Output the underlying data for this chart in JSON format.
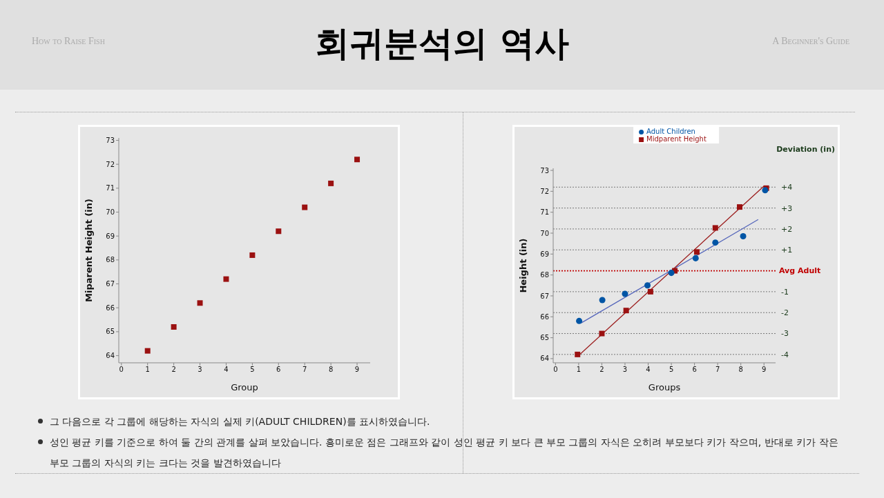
{
  "chart_data": [
    {
      "type": "scatter",
      "title": "회귀분석의 역사",
      "annotations": [
        "How to Raise Fish",
        "A Beginner's Guide"
      ],
      "xlabel": "Group",
      "ylabel": "Miparent Height (in)",
      "marker": "square",
      "grid": false,
      "legend": false,
      "xlim": [
        -0.1,
        9.5
      ],
      "xticks": [
        0,
        1,
        2,
        3,
        4,
        5,
        6,
        7,
        8,
        9
      ],
      "ylim": [
        63.7,
        73.1
      ],
      "yticks": [
        64,
        65,
        66,
        67,
        68,
        69,
        70,
        71,
        72,
        73
      ],
      "x": [
        1,
        2,
        3,
        4,
        5,
        6,
        7,
        8,
        9
      ],
      "series": [
        {
          "color": "#9b1111",
          "values": [
            64.2,
            65.2,
            66.2,
            67.2,
            68.2,
            69.2,
            70.2,
            71.2,
            72.2
          ]
        }
      ]
    },
    {
      "type": "scatter",
      "xlabel": "Groups",
      "ylabel": "Height (in)",
      "y2label": "Deviation (in)",
      "legend": "top",
      "grid": false,
      "annotations": [
        "그 다음으로 각 그룹에 해당하는 자식의 실제 키(ADULT CHILDREN)를 표시하였습니다.",
        "성인 평균 키를 기준으로 하여 둘 간의 관계를 살펴 보았습니다. 흥미로운 점은 그래프와 같이 성인 평균 키 보다 큰 부모 그룹의 자식은 오히려 부모보다 키가 작으며, 반대로 키가 작은 부모 그룹의 자식의 키는 크다는 것을 발견하였습니다"
      ],
      "xlim": [
        -0.1,
        9.5
      ],
      "xticks": [
        0,
        1,
        2,
        3,
        4,
        5,
        6,
        7,
        8,
        9
      ],
      "ylim": [
        63.8,
        73.1
      ],
      "yticks": [
        64,
        65,
        66,
        67,
        68,
        69,
        70,
        71,
        72,
        73
      ],
      "y2lim": [
        -4.4,
        4.9
      ],
      "y2ticks": [
        {
          "value": -4,
          "label": "-4"
        },
        {
          "value": -3,
          "label": "-3"
        },
        {
          "value": -2,
          "label": "-2"
        },
        {
          "value": -1,
          "label": "-1"
        },
        {
          "value": 1,
          "label": "+1"
        },
        {
          "value": 2,
          "label": "+2"
        },
        {
          "value": 3,
          "label": "+3"
        },
        {
          "value": 4,
          "label": "+4"
        }
      ],
      "ref_lines": [
        {
          "axis": "y2",
          "value": 0,
          "label": "Avg Adult",
          "color": "#c00000",
          "line_style": "dotted"
        },
        {
          "axis": "y2",
          "value": -4,
          "color": "#777777",
          "line_style": "dotted"
        },
        {
          "axis": "y2",
          "value": -3,
          "color": "#777777",
          "line_style": "dotted"
        },
        {
          "axis": "y2",
          "value": -2,
          "color": "#777777",
          "line_style": "dotted"
        },
        {
          "axis": "y2",
          "value": -1,
          "color": "#777777",
          "line_style": "dotted"
        },
        {
          "axis": "y2",
          "value": 1,
          "color": "#777777",
          "line_style": "dotted"
        },
        {
          "axis": "y2",
          "value": 2,
          "color": "#777777",
          "line_style": "dotted"
        },
        {
          "axis": "y2",
          "value": 3,
          "color": "#777777",
          "line_style": "dotted"
        },
        {
          "axis": "y2",
          "value": 4,
          "color": "#777777",
          "line_style": "dotted"
        }
      ],
      "series": [
        {
          "type": "line",
          "color": "#9b1b1b",
          "line_style": "solid",
          "x": [
            0.95,
            9.0
          ],
          "values": [
            64.1,
            72.25
          ]
        },
        {
          "type": "line",
          "color": "#5566bb",
          "line_style": "solid",
          "x": [
            1.1,
            8.75
          ],
          "values": [
            65.7,
            70.65
          ]
        },
        {
          "name": "Adult Children",
          "color": "#0055a5",
          "marker": "circle",
          "x": [
            1.02,
            2.02,
            3.0,
            3.97,
            5.0,
            6.05,
            6.9,
            8.1,
            9.05
          ],
          "values": [
            65.8,
            66.8,
            67.1,
            67.5,
            68.1,
            68.8,
            69.55,
            69.85,
            72.05
          ]
        },
        {
          "name": "Midparent Height",
          "color": "#9b1111",
          "marker": "square",
          "x": [
            0.95,
            2.0,
            3.05,
            4.1,
            5.15,
            6.1,
            6.9,
            7.95,
            9.1
          ],
          "values": [
            64.2,
            65.2,
            66.3,
            67.2,
            68.2,
            69.1,
            70.25,
            71.25,
            72.15
          ]
        }
      ]
    }
  ]
}
